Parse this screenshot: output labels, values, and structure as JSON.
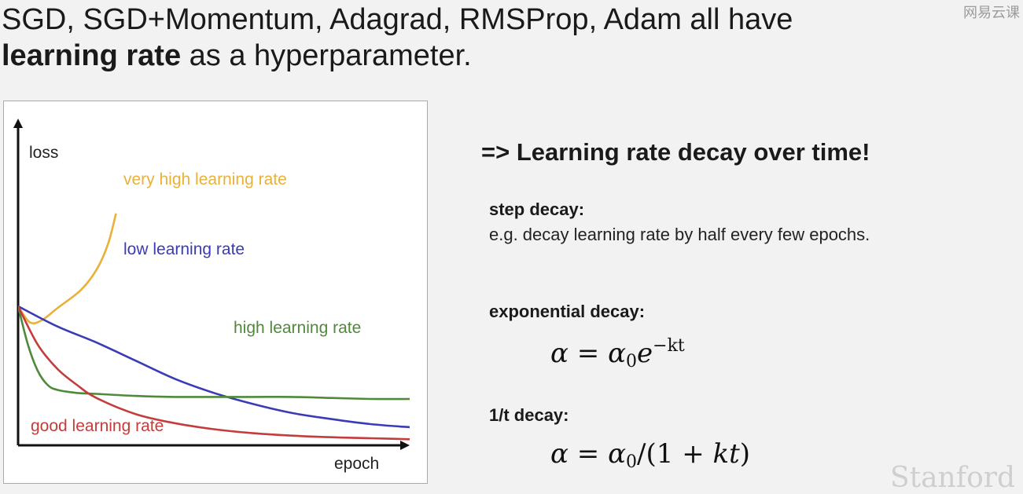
{
  "slide": {
    "title_line1": "SGD, SGD+Momentum, Adagrad, RMSProp, Adam all have",
    "title_bold": "learning rate",
    "title_line2_rest": " as a hyperparameter.",
    "watermark": "网易云课",
    "watermark_bottom": "Stanford"
  },
  "chart_data": {
    "type": "line",
    "title": "",
    "xlabel": "epoch",
    "ylabel": "loss",
    "xlim": [
      0,
      10
    ],
    "ylim": [
      0,
      10
    ],
    "grid": false,
    "series": [
      {
        "name": "very high learning rate",
        "color": "#e8b13a",
        "x": [
          0,
          0.3,
          0.6,
          1.0,
          1.6,
          2.0,
          2.3,
          2.5
        ],
        "y": [
          6.9,
          6.1,
          6.2,
          6.8,
          7.7,
          8.7,
          10.0,
          11.5
        ]
      },
      {
        "name": "low learning rate",
        "color": "#3b3bb8",
        "x": [
          0,
          1,
          2,
          3,
          4,
          5,
          6,
          7,
          8,
          9,
          10
        ],
        "y": [
          6.9,
          5.9,
          5.1,
          4.2,
          3.3,
          2.6,
          2.05,
          1.6,
          1.3,
          1.05,
          0.9
        ]
      },
      {
        "name": "high learning rate",
        "color": "#4e8a3a",
        "x": [
          0,
          0.25,
          0.5,
          0.75,
          1.0,
          1.5,
          2.0,
          3.0,
          4.0,
          5.0,
          6.0,
          7.0,
          8.0,
          9.0,
          10.0
        ],
        "y": [
          6.9,
          5.0,
          3.7,
          3.0,
          2.75,
          2.6,
          2.55,
          2.45,
          2.4,
          2.4,
          2.4,
          2.4,
          2.35,
          2.3,
          2.3
        ]
      },
      {
        "name": "good learning rate",
        "color": "#c43c3c",
        "x": [
          0,
          0.5,
          1.0,
          1.5,
          2.0,
          3.0,
          4.0,
          5.0,
          6.0,
          7.0,
          8.0,
          9.0,
          10.0
        ],
        "y": [
          6.9,
          5.0,
          3.8,
          3.0,
          2.35,
          1.55,
          1.1,
          0.8,
          0.6,
          0.48,
          0.4,
          0.35,
          0.3
        ]
      }
    ]
  },
  "right": {
    "headline": "=> Learning rate decay over time!",
    "step_title": "step decay:",
    "step_desc": "e.g. decay learning rate by half every few epochs.",
    "exp_title": "exponential decay:",
    "exp_formula": {
      "alpha": "α",
      "eq": " = ",
      "alpha0": "α",
      "sub0": "0",
      "e": "e",
      "sup": "−kt"
    },
    "inv_title": "1/t decay:",
    "inv_formula": {
      "alpha": "α",
      "eq": " = ",
      "alpha0": "α",
      "sub0": "0",
      "rest": "/(1 + ",
      "k": "k",
      "t": "t",
      "close": ")"
    }
  }
}
